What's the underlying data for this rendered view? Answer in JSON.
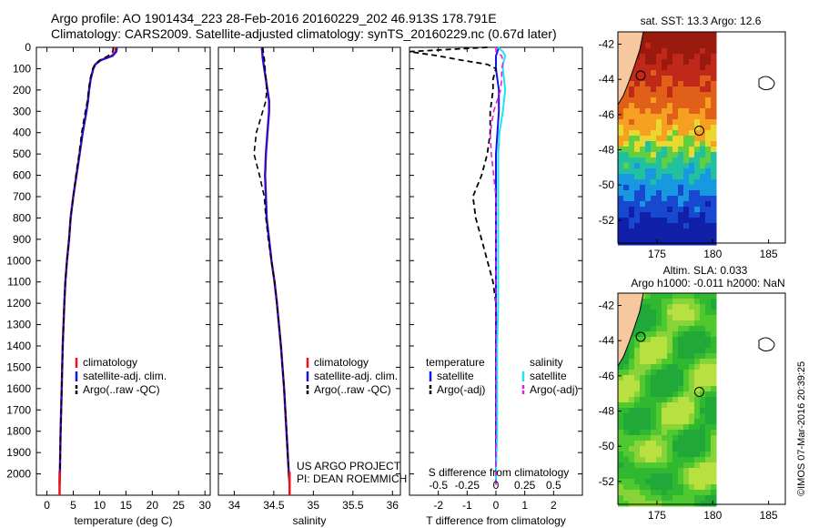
{
  "header": {
    "line1": "Argo profile: AO 1901434_223 28-Feb-2016 20160229_202 46.913S 178.791E",
    "line2": "Climatology: CARS2009. Satellite-adjusted climatology: synTS_20160229.nc (0.67d later)"
  },
  "side_label": "©IMOS 07-Mar-2016 20:39:25",
  "colors": {
    "climatology": "#e8141e",
    "satellite": "#1414e6",
    "argo": "#000000",
    "sal_satellite": "#19e6f0",
    "sal_argo": "#e619e6",
    "land": "#f5c8a0"
  },
  "chart_data": [
    {
      "type": "line",
      "panel": "temperature",
      "xlabel": "temperature (deg C)",
      "xlim": [
        -2,
        31
      ],
      "xticks": [
        "0",
        "5",
        "10",
        "15",
        "20",
        "25",
        "30"
      ],
      "ylim": [
        2100,
        0
      ],
      "yticks": [
        "0",
        "100",
        "200",
        "300",
        "400",
        "500",
        "600",
        "700",
        "800",
        "900",
        "1000",
        "1100",
        "1200",
        "1300",
        "1400",
        "1500",
        "1600",
        "1700",
        "1800",
        "1900",
        "2000"
      ],
      "depth": [
        0,
        20,
        40,
        60,
        80,
        100,
        150,
        200,
        250,
        300,
        400,
        500,
        600,
        700,
        800,
        900,
        1000,
        1100,
        1200,
        1400,
        1600,
        1800,
        2000,
        2050
      ],
      "series": [
        {
          "name": "climatology",
          "values": [
            13.0,
            13.0,
            12.3,
            10.2,
            9.2,
            8.8,
            8.3,
            8.0,
            7.8,
            7.5,
            6.8,
            6.2,
            5.6,
            5.0,
            4.5,
            4.2,
            3.8,
            3.5,
            3.3,
            3.0,
            2.8,
            2.6,
            2.45,
            2.4
          ]
        },
        {
          "name": "satellite-adj. clim.",
          "values": [
            13.3,
            13.2,
            12.5,
            10.3,
            9.2,
            8.8,
            8.3,
            8.0,
            7.8,
            7.5,
            6.8,
            6.2,
            5.6,
            5.0,
            4.5,
            4.2,
            3.8,
            3.5,
            3.3,
            3.0,
            2.8,
            2.6,
            2.45,
            2.4
          ]
        },
        {
          "name": "Argo(..raw -QC)",
          "values": [
            12.6,
            12.5,
            11.6,
            10.0,
            9.1,
            8.7,
            8.2,
            7.9,
            7.7,
            7.3,
            6.6,
            6.1,
            5.5,
            5.0,
            4.5,
            4.2,
            3.8,
            3.5,
            3.3,
            3.0,
            2.8,
            2.6,
            2.45,
            2.4
          ]
        }
      ],
      "legend": [
        "climatology",
        "satellite-adj. clim.",
        "Argo(..raw -QC)"
      ]
    },
    {
      "type": "line",
      "panel": "salinity",
      "xlabel": "salinity",
      "xlim": [
        33.8,
        36.1
      ],
      "xticks": [
        "34",
        "34.5",
        "35",
        "35.5",
        "36"
      ],
      "ylim": [
        2100,
        0
      ],
      "depth": [
        0,
        50,
        100,
        150,
        200,
        250,
        300,
        400,
        500,
        600,
        700,
        800,
        900,
        1000,
        1100,
        1200,
        1400,
        1600,
        1800,
        2000,
        2050
      ],
      "series": [
        {
          "name": "climatology",
          "values": [
            34.35,
            34.36,
            34.38,
            34.4,
            34.42,
            34.44,
            34.44,
            34.42,
            34.4,
            34.39,
            34.4,
            34.41,
            34.44,
            34.47,
            34.51,
            34.54,
            34.59,
            34.63,
            34.66,
            34.69,
            34.7
          ]
        },
        {
          "name": "satellite-adj. clim.",
          "values": [
            34.35,
            34.36,
            34.38,
            34.4,
            34.42,
            34.44,
            34.44,
            34.42,
            34.4,
            34.39,
            34.4,
            34.41,
            34.44,
            34.47,
            34.51,
            34.54,
            34.59,
            34.63,
            34.66,
            34.69,
            34.7
          ]
        },
        {
          "name": "Argo(..raw -QC)",
          "values": [
            34.36,
            34.38,
            34.39,
            34.4,
            34.41,
            34.4,
            34.36,
            34.28,
            34.25,
            34.32,
            34.38,
            34.4,
            34.43,
            34.47,
            34.51,
            34.54,
            34.59,
            34.63,
            34.66,
            34.69,
            34.7
          ]
        }
      ],
      "legend": [
        "climatology",
        "satellite-adj. clim.",
        "Argo(..raw -QC)"
      ],
      "annotation": [
        "US ARGO PROJECT",
        "PI: DEAN ROEMMICH"
      ]
    },
    {
      "type": "line",
      "panel": "difference",
      "xlabel": "T difference from climatology",
      "xlim": [
        -3,
        3
      ],
      "xticks": [
        "-2",
        "-1",
        "0",
        "1",
        "2"
      ],
      "xlabel_top": "S difference from climatology",
      "xticks_top": [
        "-0.5",
        "-0.25",
        "0",
        "0.25",
        "0.5"
      ],
      "ylim": [
        2100,
        0
      ],
      "depth": [
        0,
        20,
        40,
        60,
        80,
        100,
        150,
        200,
        300,
        400,
        500,
        600,
        700,
        800,
        900,
        1000,
        1100,
        1200,
        1400,
        1600,
        1800,
        2000,
        2050
      ],
      "series": [
        {
          "name": "temperature satellite",
          "values": [
            0.1,
            0.05,
            0.0,
            0.0,
            0.0,
            0.0,
            0.05,
            0.1,
            0.1,
            0.05,
            0.0,
            0.0,
            0.0,
            0.0,
            0.0,
            0.0,
            0.0,
            0.0,
            0.0,
            0.0,
            0.0,
            0.0,
            0.0
          ]
        },
        {
          "name": "temperature Argo(-adj)",
          "values": [
            -0.3,
            -3.0,
            -2.0,
            -1.2,
            -0.3,
            0.0,
            -0.1,
            -0.1,
            -0.2,
            -0.2,
            -0.3,
            -0.5,
            -0.8,
            -0.7,
            -0.5,
            -0.3,
            -0.1,
            0.0,
            0.0,
            0.0,
            0.0,
            0.0,
            0.0
          ]
        },
        {
          "name": "salinity satellite",
          "values": [
            0.02,
            0.06,
            0.08,
            0.07,
            0.06,
            0.06,
            0.07,
            0.08,
            0.06,
            0.03,
            0.02,
            0.02,
            0.02,
            0.02,
            0.02,
            0.02,
            0.02,
            0.02,
            0.01,
            0.01,
            0.01,
            0.0,
            0.0
          ]
        },
        {
          "name": "salinity Argo(-adj)",
          "values": [
            0.0,
            0.0,
            0.05,
            0.06,
            0.06,
            0.05,
            0.05,
            0.04,
            -0.02,
            -0.05,
            -0.04,
            -0.02,
            0.0,
            0.0,
            0.0,
            0.0,
            0.0,
            0.0,
            0.0,
            0.0,
            0.0,
            0.0,
            0.0
          ]
        }
      ],
      "legend_temperature": [
        "temperature",
        "satellite",
        "Argo(-adj)"
      ],
      "legend_salinity": [
        "salinity",
        "satellite",
        "Argo(-adj)"
      ]
    },
    {
      "type": "heatmap",
      "panel": "sst-map",
      "title": "sat. SST: 13.3 Argo: 12.6",
      "xticks": [
        "175",
        "180",
        "185"
      ],
      "yticks": [
        "-42",
        "-44",
        "-46",
        "-48",
        "-50",
        "-52"
      ],
      "xlim": [
        171.5,
        186.5
      ],
      "ylim": [
        -53.3,
        -41.3
      ]
    },
    {
      "type": "heatmap",
      "panel": "sla-map",
      "title_lines": [
        "Altim. SLA: 0.033",
        "Argo h1000: -0.011 h2000: NaN"
      ],
      "xticks": [
        "175",
        "180",
        "185"
      ],
      "yticks": [
        "-42",
        "-44",
        "-46",
        "-48",
        "-50",
        "-52"
      ],
      "xlim": [
        171.5,
        186.5
      ],
      "ylim": [
        -53.3,
        -41.3
      ]
    }
  ]
}
